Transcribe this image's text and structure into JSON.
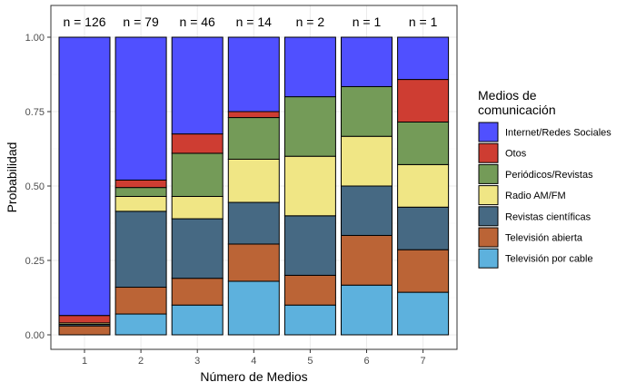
{
  "chart_data": {
    "type": "bar",
    "stacked": true,
    "categories": [
      "1",
      "2",
      "3",
      "4",
      "5",
      "6",
      "7"
    ],
    "counts": [
      "n = 126",
      "n = 79",
      "n = 46",
      "n = 14",
      "n = 2",
      "n = 1",
      "n = 1"
    ],
    "xlabel": "Número de Medios",
    "ylabel": "Probabilidad",
    "ylim": [
      0,
      1
    ],
    "yticks": [
      "0.00",
      "0.25",
      "0.50",
      "0.75",
      "1.00"
    ],
    "legend_title_lines": [
      "Medios de",
      "comunicación"
    ],
    "legend_position": "right",
    "series": [
      {
        "name": "Televisión por cable",
        "color": "#5DB1DD",
        "values": [
          0.0,
          0.07,
          0.1,
          0.18,
          0.1,
          0.167,
          0.143
        ]
      },
      {
        "name": "Televisión abierta",
        "color": "#BB6436",
        "values": [
          0.03,
          0.09,
          0.09,
          0.125,
          0.1,
          0.167,
          0.143
        ]
      },
      {
        "name": "Revistas científicas",
        "color": "#466983",
        "values": [
          0.005,
          0.255,
          0.2,
          0.14,
          0.2,
          0.166,
          0.143
        ]
      },
      {
        "name": "Radio AM/FM",
        "color": "#F0E685",
        "values": [
          0.005,
          0.05,
          0.075,
          0.145,
          0.2,
          0.167,
          0.143
        ]
      },
      {
        "name": "Periódicos/Revistas",
        "color": "#749B58",
        "values": [
          0.0,
          0.03,
          0.145,
          0.14,
          0.2,
          0.167,
          0.143
        ]
      },
      {
        "name": "Otos",
        "color": "#CE3D32",
        "values": [
          0.025,
          0.025,
          0.065,
          0.02,
          0.0,
          0.0,
          0.143
        ]
      },
      {
        "name": "Internet/Redes Sociales",
        "color": "#5050FF",
        "values": [
          0.935,
          0.48,
          0.325,
          0.25,
          0.2,
          0.166,
          0.142
        ]
      }
    ],
    "legend_order": [
      "Internet/Redes Sociales",
      "Otos",
      "Periódicos/Revistas",
      "Radio AM/FM",
      "Revistas científicas",
      "Televisión abierta",
      "Televisión por cable"
    ],
    "grid": true
  }
}
